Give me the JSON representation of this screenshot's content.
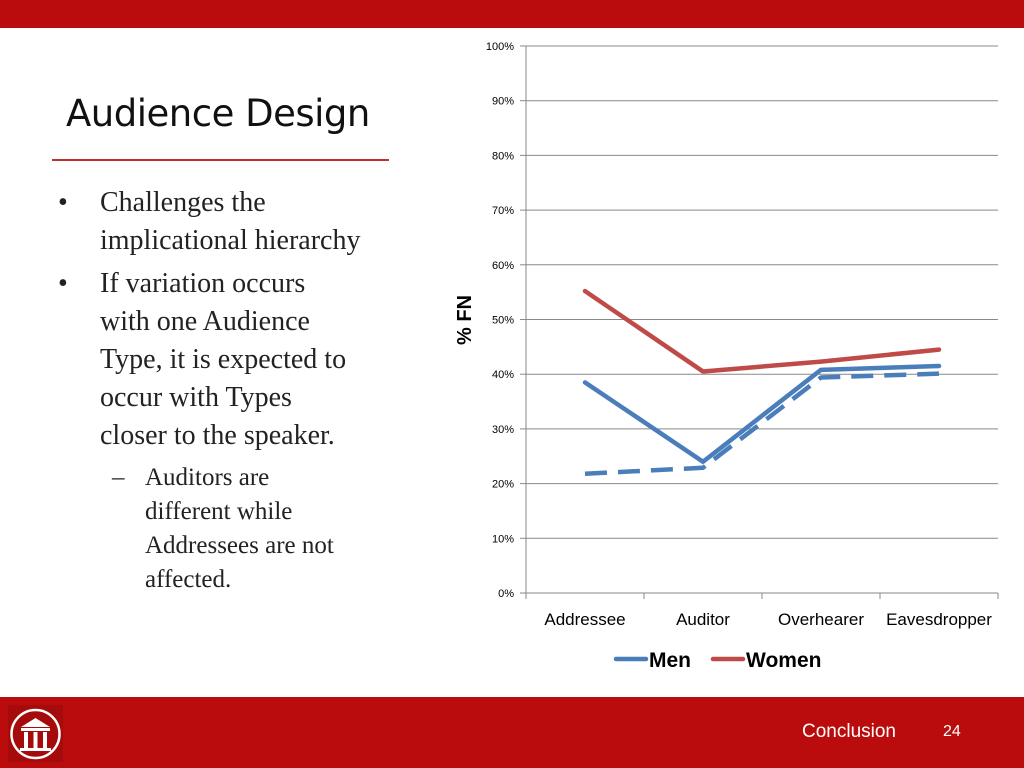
{
  "slide": {
    "title": "Audience Design",
    "bullets": [
      {
        "marker": "•",
        "text": "Challenges the\nimplicational hierarchy"
      },
      {
        "marker": "•",
        "text": "If variation occurs\nwith one Audience\nType, it is expected to\noccur with Types\ncloser to the speaker."
      }
    ],
    "sub_bullets": [
      {
        "marker": "–",
        "text": "Auditors are\ndifferent while\nAddressees are not\naffected."
      }
    ],
    "footer_label": "Conclusion",
    "page_number": "24"
  },
  "colors": {
    "brand_red": "#ba0c0c",
    "men": "#4a7ebb",
    "women": "#be4b48",
    "grid": "#898989"
  },
  "chart_data": {
    "type": "line",
    "categories": [
      "Addressee",
      "Auditor",
      "Overhearer",
      "Eavesdropper"
    ],
    "ylabel": "% FN",
    "ylim": [
      0,
      100
    ],
    "ytick_labels": [
      "0%",
      "10%",
      "20%",
      "30%",
      "40%",
      "50%",
      "60%",
      "70%",
      "80%",
      "90%",
      "100%"
    ],
    "grid": true,
    "legend_position": "bottom",
    "series": [
      {
        "name": "Men",
        "values": [
          38.5,
          24.0,
          40.8,
          41.5
        ],
        "style": "solid",
        "color": "#4a7ebb"
      },
      {
        "name": "Women",
        "values": [
          55.2,
          40.5,
          42.3,
          44.5
        ],
        "style": "solid",
        "color": "#be4b48"
      },
      {
        "values": [
          21.8,
          22.9,
          39.4,
          40.1
        ],
        "style": "dashed",
        "color": "#4a7ebb"
      }
    ]
  }
}
